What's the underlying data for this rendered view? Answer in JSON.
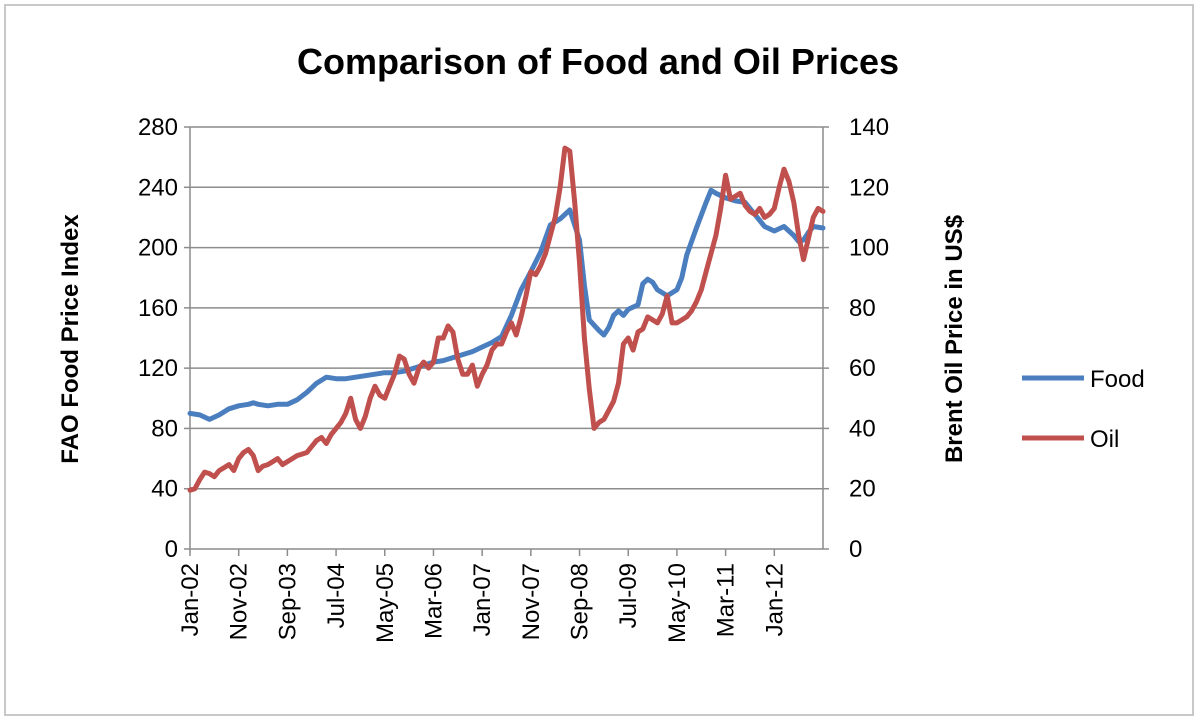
{
  "chart_data": {
    "type": "line",
    "title": "Comparison of Food and Oil Prices",
    "ylabel_left": "FAO Food Price Index",
    "ylabel_right": "Brent Oil Price in US$",
    "xlabel": "",
    "ylim_left": [
      0,
      280
    ],
    "ylim_right": [
      0,
      140
    ],
    "yticks_left": [
      "0",
      "40",
      "80",
      "120",
      "160",
      "200",
      "240",
      "280"
    ],
    "yticks_right": [
      "0",
      "20",
      "40",
      "60",
      "80",
      "100",
      "120",
      "140"
    ],
    "x_range": [
      0,
      130
    ],
    "xticks": [
      {
        "label": "Jan-02",
        "index": 0
      },
      {
        "label": "Nov-02",
        "index": 10
      },
      {
        "label": "Sep-03",
        "index": 20
      },
      {
        "label": "Jul-04",
        "index": 30
      },
      {
        "label": "May-05",
        "index": 40
      },
      {
        "label": "Mar-06",
        "index": 50
      },
      {
        "label": "Jan-07",
        "index": 60
      },
      {
        "label": "Nov-07",
        "index": 70
      },
      {
        "label": "Sep-08",
        "index": 80
      },
      {
        "label": "Jul-09",
        "index": 90
      },
      {
        "label": "May-10",
        "index": 100
      },
      {
        "label": "Mar-11",
        "index": 110
      },
      {
        "label": "Jan-12",
        "index": 120
      }
    ],
    "grid": true,
    "legend_position": "right",
    "series": [
      {
        "name": "Food",
        "axis": "left",
        "color": "#4a7ebf",
        "points": [
          [
            0,
            90
          ],
          [
            2,
            89
          ],
          [
            4,
            86
          ],
          [
            6,
            89
          ],
          [
            8,
            93
          ],
          [
            10,
            95
          ],
          [
            12,
            96
          ],
          [
            13,
            97
          ],
          [
            14,
            96
          ],
          [
            16,
            95
          ],
          [
            18,
            96
          ],
          [
            20,
            96
          ],
          [
            22,
            99
          ],
          [
            24,
            104
          ],
          [
            26,
            110
          ],
          [
            28,
            114
          ],
          [
            30,
            113
          ],
          [
            32,
            113
          ],
          [
            34,
            114
          ],
          [
            36,
            115
          ],
          [
            38,
            116
          ],
          [
            40,
            117
          ],
          [
            42,
            117
          ],
          [
            44,
            118
          ],
          [
            46,
            120
          ],
          [
            48,
            122
          ],
          [
            50,
            124
          ],
          [
            52,
            125
          ],
          [
            54,
            127
          ],
          [
            56,
            129
          ],
          [
            58,
            131
          ],
          [
            60,
            134
          ],
          [
            62,
            137
          ],
          [
            64,
            141
          ],
          [
            66,
            155
          ],
          [
            68,
            172
          ],
          [
            70,
            184
          ],
          [
            72,
            197
          ],
          [
            74,
            215
          ],
          [
            76,
            219
          ],
          [
            78,
            225
          ],
          [
            80,
            205
          ],
          [
            81,
            175
          ],
          [
            82,
            152
          ],
          [
            84,
            145
          ],
          [
            85,
            142
          ],
          [
            86,
            147
          ],
          [
            87,
            155
          ],
          [
            88,
            158
          ],
          [
            89,
            155
          ],
          [
            90,
            159
          ],
          [
            92,
            162
          ],
          [
            93,
            176
          ],
          [
            94,
            179
          ],
          [
            95,
            177
          ],
          [
            96,
            172
          ],
          [
            97,
            170
          ],
          [
            98,
            168
          ],
          [
            100,
            172
          ],
          [
            101,
            180
          ],
          [
            102,
            195
          ],
          [
            104,
            213
          ],
          [
            106,
            230
          ],
          [
            107,
            238
          ],
          [
            108,
            236
          ],
          [
            110,
            233
          ],
          [
            111,
            232
          ],
          [
            112,
            231
          ],
          [
            114,
            230
          ],
          [
            116,
            222
          ],
          [
            118,
            214
          ],
          [
            120,
            211
          ],
          [
            122,
            214
          ],
          [
            124,
            208
          ],
          [
            125,
            204
          ],
          [
            126,
            205
          ],
          [
            127,
            210
          ],
          [
            128,
            214
          ],
          [
            130,
            213
          ]
        ]
      },
      {
        "name": "Oil",
        "axis": "right",
        "color": "#c0504d",
        "points": [
          [
            0,
            19.5
          ],
          [
            1,
            20
          ],
          [
            2,
            23
          ],
          [
            3,
            25.5
          ],
          [
            4,
            25
          ],
          [
            5,
            24
          ],
          [
            6,
            26
          ],
          [
            7,
            27
          ],
          [
            8,
            28
          ],
          [
            9,
            26
          ],
          [
            10,
            30
          ],
          [
            11,
            32
          ],
          [
            12,
            33
          ],
          [
            13,
            31
          ],
          [
            14,
            26
          ],
          [
            15,
            27.5
          ],
          [
            16,
            28
          ],
          [
            17,
            29
          ],
          [
            18,
            30
          ],
          [
            19,
            28
          ],
          [
            20,
            29
          ],
          [
            21,
            30
          ],
          [
            22,
            31
          ],
          [
            23,
            31.5
          ],
          [
            24,
            32
          ],
          [
            25,
            34
          ],
          [
            26,
            36
          ],
          [
            27,
            37
          ],
          [
            28,
            35
          ],
          [
            29,
            38
          ],
          [
            30,
            40
          ],
          [
            31,
            42
          ],
          [
            32,
            45
          ],
          [
            33,
            50
          ],
          [
            34,
            43
          ],
          [
            35,
            40
          ],
          [
            36,
            44
          ],
          [
            37,
            50
          ],
          [
            38,
            54
          ],
          [
            39,
            51
          ],
          [
            40,
            50
          ],
          [
            41,
            54
          ],
          [
            42,
            58
          ],
          [
            43,
            64
          ],
          [
            44,
            63
          ],
          [
            45,
            58
          ],
          [
            46,
            55
          ],
          [
            47,
            60
          ],
          [
            48,
            62
          ],
          [
            49,
            60
          ],
          [
            50,
            62
          ],
          [
            51,
            70
          ],
          [
            52,
            70
          ],
          [
            53,
            74
          ],
          [
            54,
            72
          ],
          [
            55,
            63
          ],
          [
            56,
            58
          ],
          [
            57,
            58
          ],
          [
            58,
            61
          ],
          [
            59,
            54
          ],
          [
            60,
            58
          ],
          [
            61,
            61
          ],
          [
            62,
            66
          ],
          [
            63,
            68
          ],
          [
            64,
            68
          ],
          [
            65,
            72
          ],
          [
            66,
            75
          ],
          [
            67,
            71
          ],
          [
            68,
            77
          ],
          [
            69,
            84
          ],
          [
            70,
            92
          ],
          [
            71,
            91
          ],
          [
            72,
            94
          ],
          [
            73,
            98
          ],
          [
            74,
            104
          ],
          [
            75,
            110
          ],
          [
            76,
            120
          ],
          [
            77,
            133
          ],
          [
            78,
            132
          ],
          [
            79,
            115
          ],
          [
            80,
            95
          ],
          [
            81,
            70
          ],
          [
            82,
            53
          ],
          [
            83,
            40
          ],
          [
            84,
            42
          ],
          [
            85,
            43
          ],
          [
            86,
            46
          ],
          [
            87,
            49
          ],
          [
            88,
            55
          ],
          [
            89,
            68
          ],
          [
            90,
            70
          ],
          [
            91,
            66
          ],
          [
            92,
            72
          ],
          [
            93,
            73
          ],
          [
            94,
            77
          ],
          [
            95,
            76
          ],
          [
            96,
            75
          ],
          [
            97,
            78
          ],
          [
            98,
            84
          ],
          [
            99,
            75
          ],
          [
            100,
            75
          ],
          [
            101,
            76
          ],
          [
            102,
            77
          ],
          [
            103,
            79
          ],
          [
            104,
            82
          ],
          [
            105,
            86
          ],
          [
            106,
            92
          ],
          [
            107,
            98
          ],
          [
            108,
            104
          ],
          [
            109,
            113
          ],
          [
            110,
            124
          ],
          [
            111,
            116
          ],
          [
            112,
            117
          ],
          [
            113,
            118
          ],
          [
            114,
            114
          ],
          [
            115,
            112
          ],
          [
            116,
            111
          ],
          [
            117,
            113
          ],
          [
            118,
            110
          ],
          [
            119,
            111
          ],
          [
            120,
            113
          ],
          [
            121,
            120
          ],
          [
            122,
            126
          ],
          [
            123,
            122
          ],
          [
            124,
            115
          ],
          [
            125,
            104
          ],
          [
            126,
            96
          ],
          [
            127,
            103
          ],
          [
            128,
            110
          ],
          [
            129,
            113
          ],
          [
            130,
            112
          ]
        ]
      }
    ]
  }
}
